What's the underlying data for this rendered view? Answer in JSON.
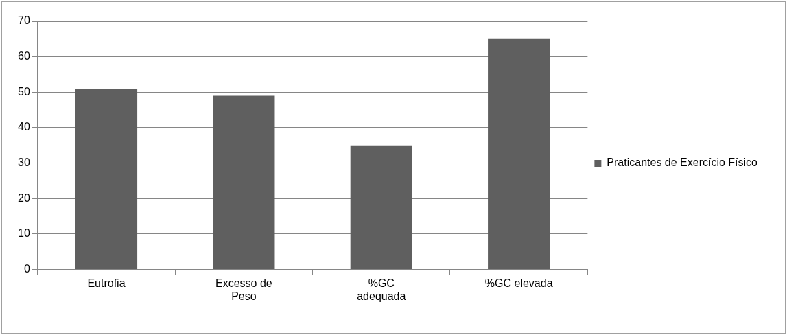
{
  "chart_data": {
    "type": "bar",
    "categories": [
      "Eutrofia",
      "Excesso de Peso",
      "%GC adequada",
      "%GC elevada"
    ],
    "series": [
      {
        "name": "Praticantes de Exercício Físico",
        "color": "#5f5f5f",
        "values": [
          51,
          49,
          35,
          65
        ]
      }
    ],
    "ylim": [
      0,
      70
    ],
    "yticks": [
      0,
      10,
      20,
      30,
      40,
      50,
      60,
      70
    ],
    "grid": "y",
    "legend": "right"
  }
}
